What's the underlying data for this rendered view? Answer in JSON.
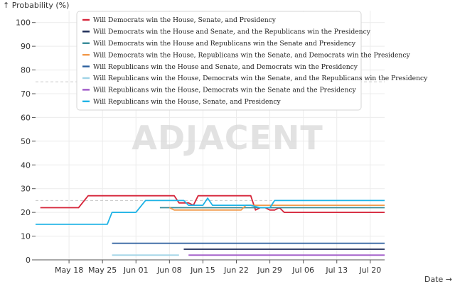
{
  "watermark": "ADJACENT",
  "chart_data": {
    "type": "line",
    "ylabel": "↑ Probability (%)",
    "xlabel": "Date →",
    "ylim": [
      0,
      105
    ],
    "xlim": [
      "2024-05-11",
      "2024-07-23"
    ],
    "yticks": [
      0,
      10,
      20,
      30,
      40,
      50,
      60,
      70,
      80,
      90,
      100
    ],
    "xticks": [
      {
        "date": "2024-05-18",
        "label": "May 18"
      },
      {
        "date": "2024-05-25",
        "label": "May 25"
      },
      {
        "date": "2024-06-01",
        "label": "Jun 01"
      },
      {
        "date": "2024-06-08",
        "label": "Jun 08"
      },
      {
        "date": "2024-06-15",
        "label": "Jun 15"
      },
      {
        "date": "2024-06-22",
        "label": "Jun 22"
      },
      {
        "date": "2024-06-29",
        "label": "Jun 29"
      },
      {
        "date": "2024-07-06",
        "label": "Jul 06"
      },
      {
        "date": "2024-07-13",
        "label": "Jul 13"
      },
      {
        "date": "2024-07-20",
        "label": "Jul 20"
      }
    ],
    "grid": true,
    "reference_lines": [
      25,
      75
    ],
    "legend_position": "top",
    "series": [
      {
        "name": "Will Democrats win the House, Senate, and Presidency",
        "color": "#d6263b",
        "points": [
          [
            "2024-05-12",
            22
          ],
          [
            "2024-05-18",
            22
          ],
          [
            "2024-05-20",
            22
          ],
          [
            "2024-05-22",
            27
          ],
          [
            "2024-05-30",
            27
          ],
          [
            "2024-06-08",
            27
          ],
          [
            "2024-06-09",
            27
          ],
          [
            "2024-06-10",
            24
          ],
          [
            "2024-06-12",
            24
          ],
          [
            "2024-06-13",
            23
          ],
          [
            "2024-06-14",
            27
          ],
          [
            "2024-06-20",
            27
          ],
          [
            "2024-06-25",
            27
          ],
          [
            "2024-06-26",
            21
          ],
          [
            "2024-06-27",
            22
          ],
          [
            "2024-06-28",
            22
          ],
          [
            "2024-06-29",
            21
          ],
          [
            "2024-06-30",
            21
          ],
          [
            "2024-07-01",
            22
          ],
          [
            "2024-07-02",
            20
          ],
          [
            "2024-07-10",
            20
          ],
          [
            "2024-07-23",
            20
          ]
        ]
      },
      {
        "name": "Will Democrats win the House and Senate, and the Republicans win the Presidency",
        "color": "#1b2a55",
        "points": [
          [
            "2024-06-11",
            4.5
          ],
          [
            "2024-07-23",
            4.5
          ]
        ]
      },
      {
        "name": "Will Democrats win the House and Republicans win the Senate and Presidency",
        "color": "#3b8d9a",
        "points": [
          [
            "2024-06-06",
            22
          ],
          [
            "2024-06-10",
            22
          ],
          [
            "2024-06-13",
            22
          ],
          [
            "2024-06-25",
            22
          ],
          [
            "2024-06-26",
            22
          ],
          [
            "2024-06-29",
            22
          ],
          [
            "2024-07-23",
            22
          ]
        ]
      },
      {
        "name": "Will Democrats win the House, Republicans win the Senate, and Democrats win the Presidency",
        "color": "#f29a4b",
        "points": [
          [
            "2024-06-08",
            22
          ],
          [
            "2024-06-09",
            21
          ],
          [
            "2024-06-22",
            21
          ],
          [
            "2024-06-23",
            21
          ],
          [
            "2024-06-24",
            23
          ],
          [
            "2024-06-27",
            23
          ],
          [
            "2024-07-23",
            23
          ]
        ]
      },
      {
        "name": "Will Republicans win the House and Senate, and Democrats win the Presidency",
        "color": "#2c5f9e",
        "points": [
          [
            "2024-05-27",
            7
          ],
          [
            "2024-06-10",
            7
          ],
          [
            "2024-07-23",
            7
          ]
        ]
      },
      {
        "name": "Will Republicans win the House, Democrats win the Senate, and the Republicans win the Presidency",
        "color": "#9fd3e6",
        "points": [
          [
            "2024-05-27",
            2
          ],
          [
            "2024-06-10",
            2
          ]
        ]
      },
      {
        "name": "Will Republicans win the House, Democrats win the Senate and the Presidency",
        "color": "#9e56c7",
        "points": [
          [
            "2024-06-12",
            2
          ],
          [
            "2024-07-23",
            2
          ]
        ]
      },
      {
        "name": "Will Republicans win the House, Senate, and Presidency",
        "color": "#1fb3e5",
        "points": [
          [
            "2024-05-11",
            15
          ],
          [
            "2024-05-18",
            15
          ],
          [
            "2024-05-26",
            15
          ],
          [
            "2024-05-27",
            20
          ],
          [
            "2024-05-30",
            20
          ],
          [
            "2024-06-01",
            20
          ],
          [
            "2024-06-03",
            25
          ],
          [
            "2024-06-11",
            25
          ],
          [
            "2024-06-12",
            23
          ],
          [
            "2024-06-15",
            23
          ],
          [
            "2024-06-16",
            26
          ],
          [
            "2024-06-17",
            23
          ],
          [
            "2024-06-25",
            23
          ],
          [
            "2024-06-27",
            22
          ],
          [
            "2024-06-29",
            22
          ],
          [
            "2024-06-30",
            25
          ],
          [
            "2024-07-23",
            25
          ]
        ]
      }
    ]
  }
}
